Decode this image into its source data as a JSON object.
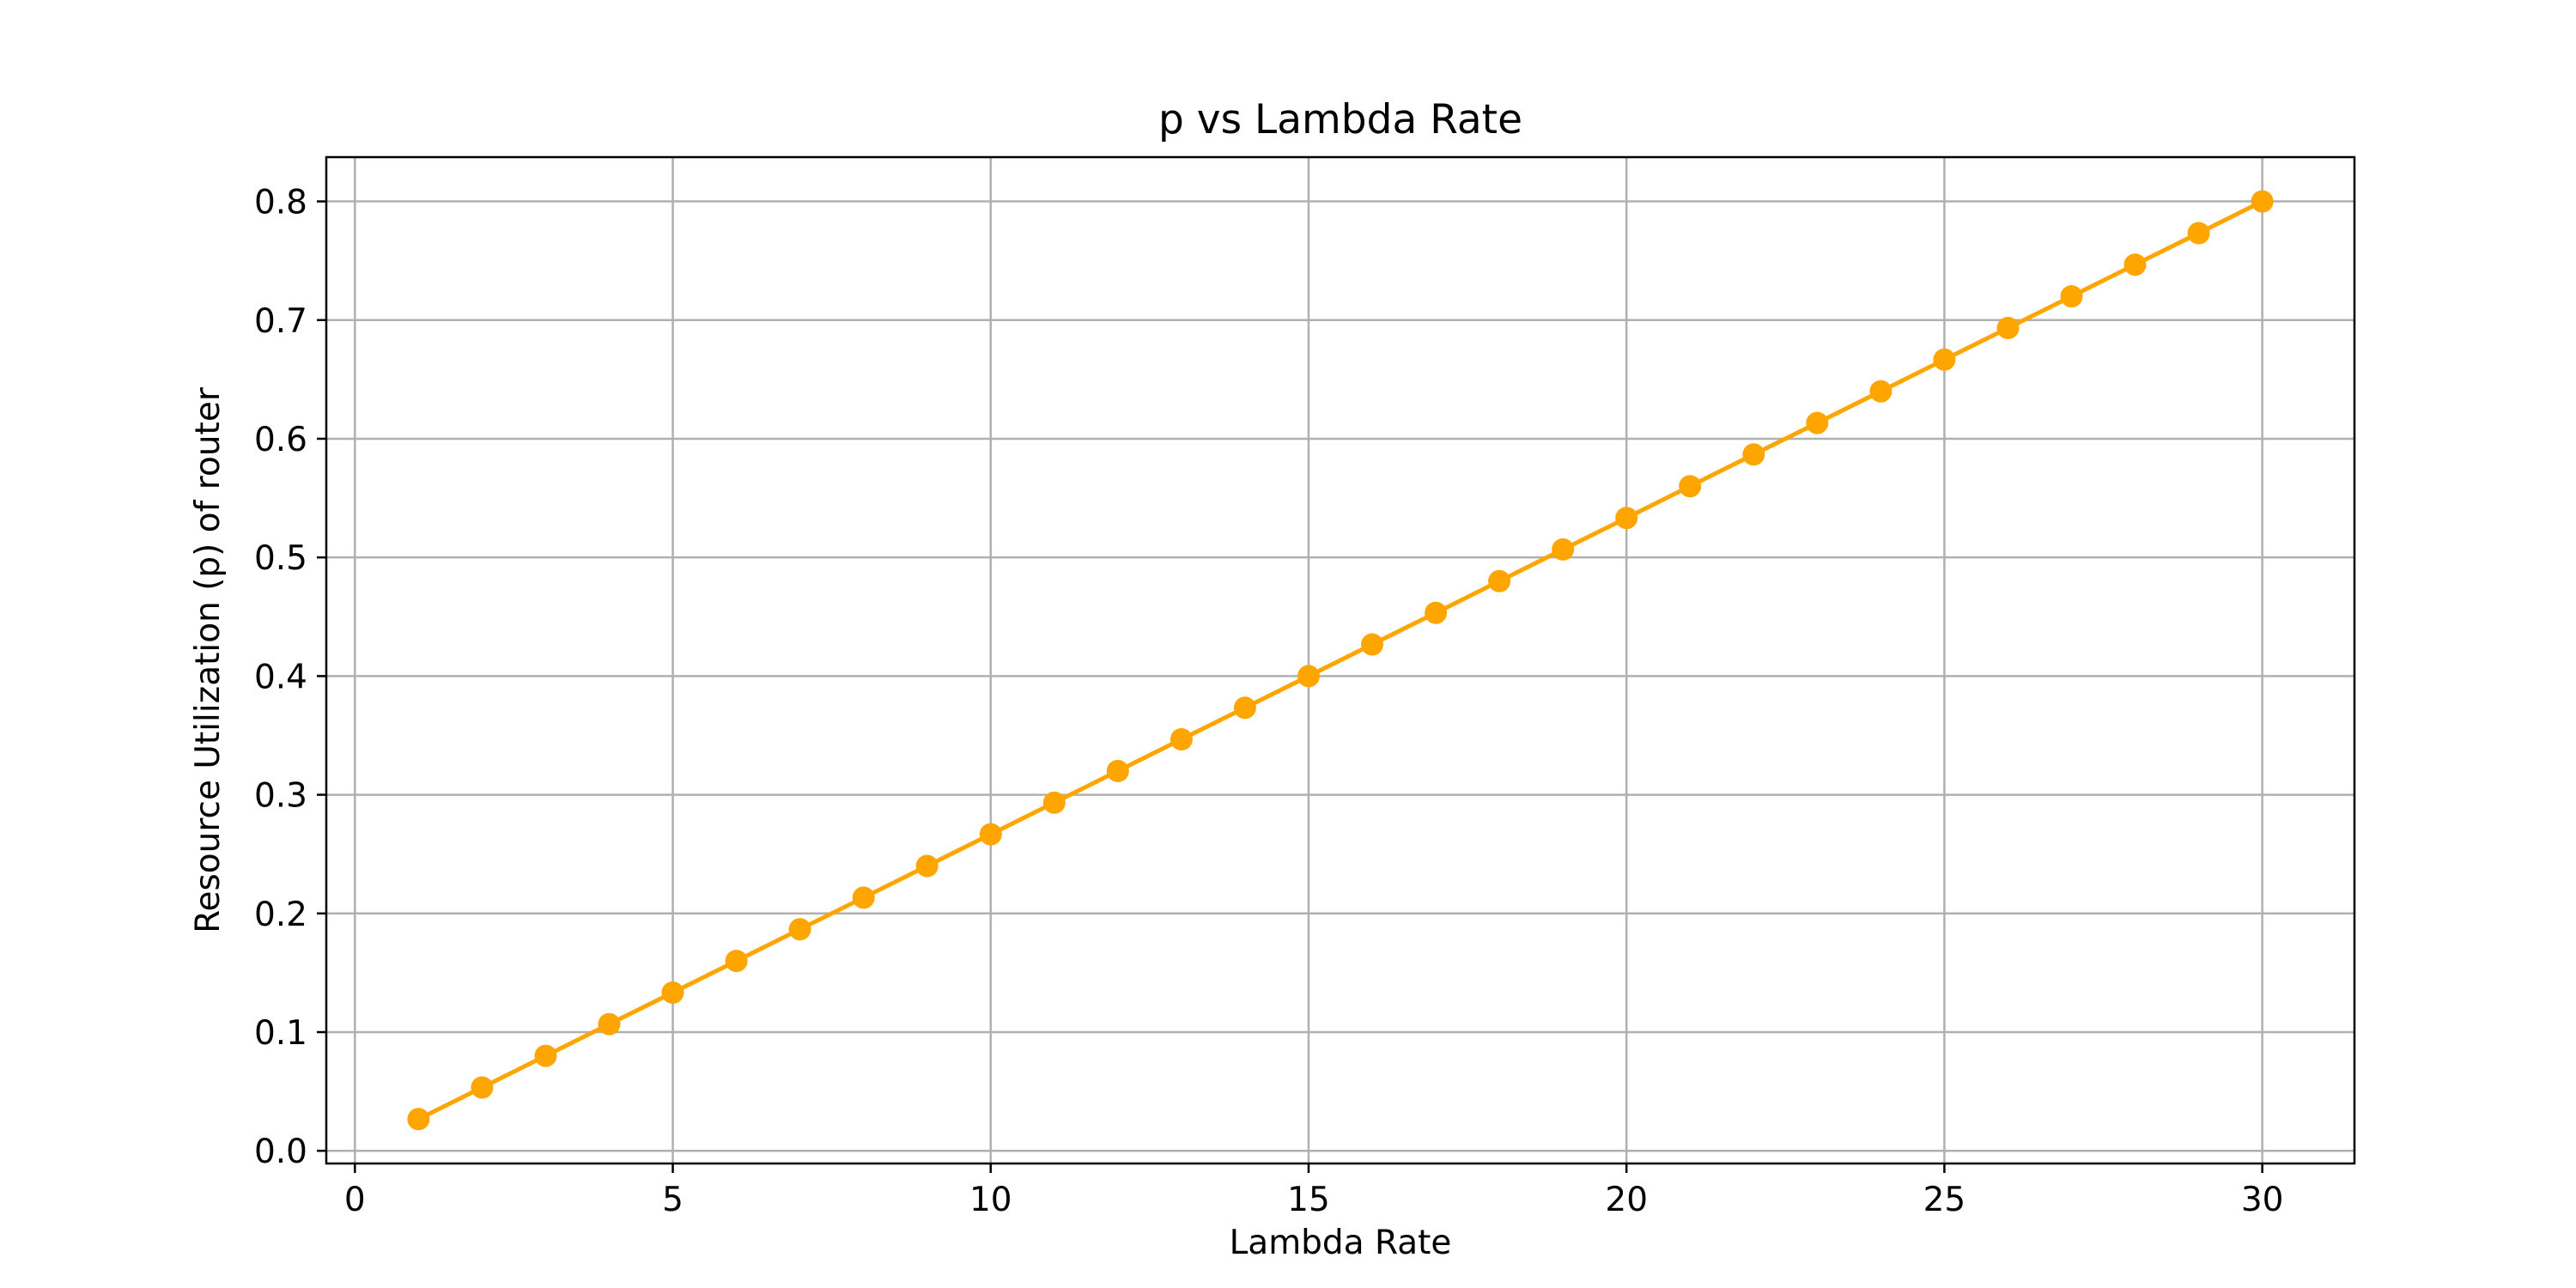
{
  "chart_data": {
    "type": "line",
    "title": "p vs Lambda Rate",
    "xlabel": "Lambda Rate",
    "ylabel": "Resource Utilization (p) of router",
    "xlim": [
      -0.45,
      31.45
    ],
    "ylim": [
      -0.0107,
      0.8373
    ],
    "x_ticks": [
      0,
      5,
      10,
      15,
      20,
      25,
      30
    ],
    "y_ticks": [
      0.0,
      0.1,
      0.2,
      0.3,
      0.4,
      0.5,
      0.6,
      0.7,
      0.8
    ],
    "y_tick_labels": [
      "0.0",
      "0.1",
      "0.2",
      "0.3",
      "0.4",
      "0.5",
      "0.6",
      "0.7",
      "0.8"
    ],
    "grid": true,
    "series": [
      {
        "color": "#ffa500",
        "marker": "circle",
        "x": [
          1,
          2,
          3,
          4,
          5,
          6,
          7,
          8,
          9,
          10,
          11,
          12,
          13,
          14,
          15,
          16,
          17,
          18,
          19,
          20,
          21,
          22,
          23,
          24,
          25,
          26,
          27,
          28,
          29,
          30
        ],
        "values": [
          0.0267,
          0.0533,
          0.08,
          0.1067,
          0.1333,
          0.16,
          0.1867,
          0.2133,
          0.24,
          0.2667,
          0.2933,
          0.32,
          0.3467,
          0.3733,
          0.4,
          0.4267,
          0.4533,
          0.48,
          0.5067,
          0.5333,
          0.56,
          0.5867,
          0.6133,
          0.64,
          0.6667,
          0.6933,
          0.72,
          0.7467,
          0.7733,
          0.8
        ]
      }
    ]
  }
}
